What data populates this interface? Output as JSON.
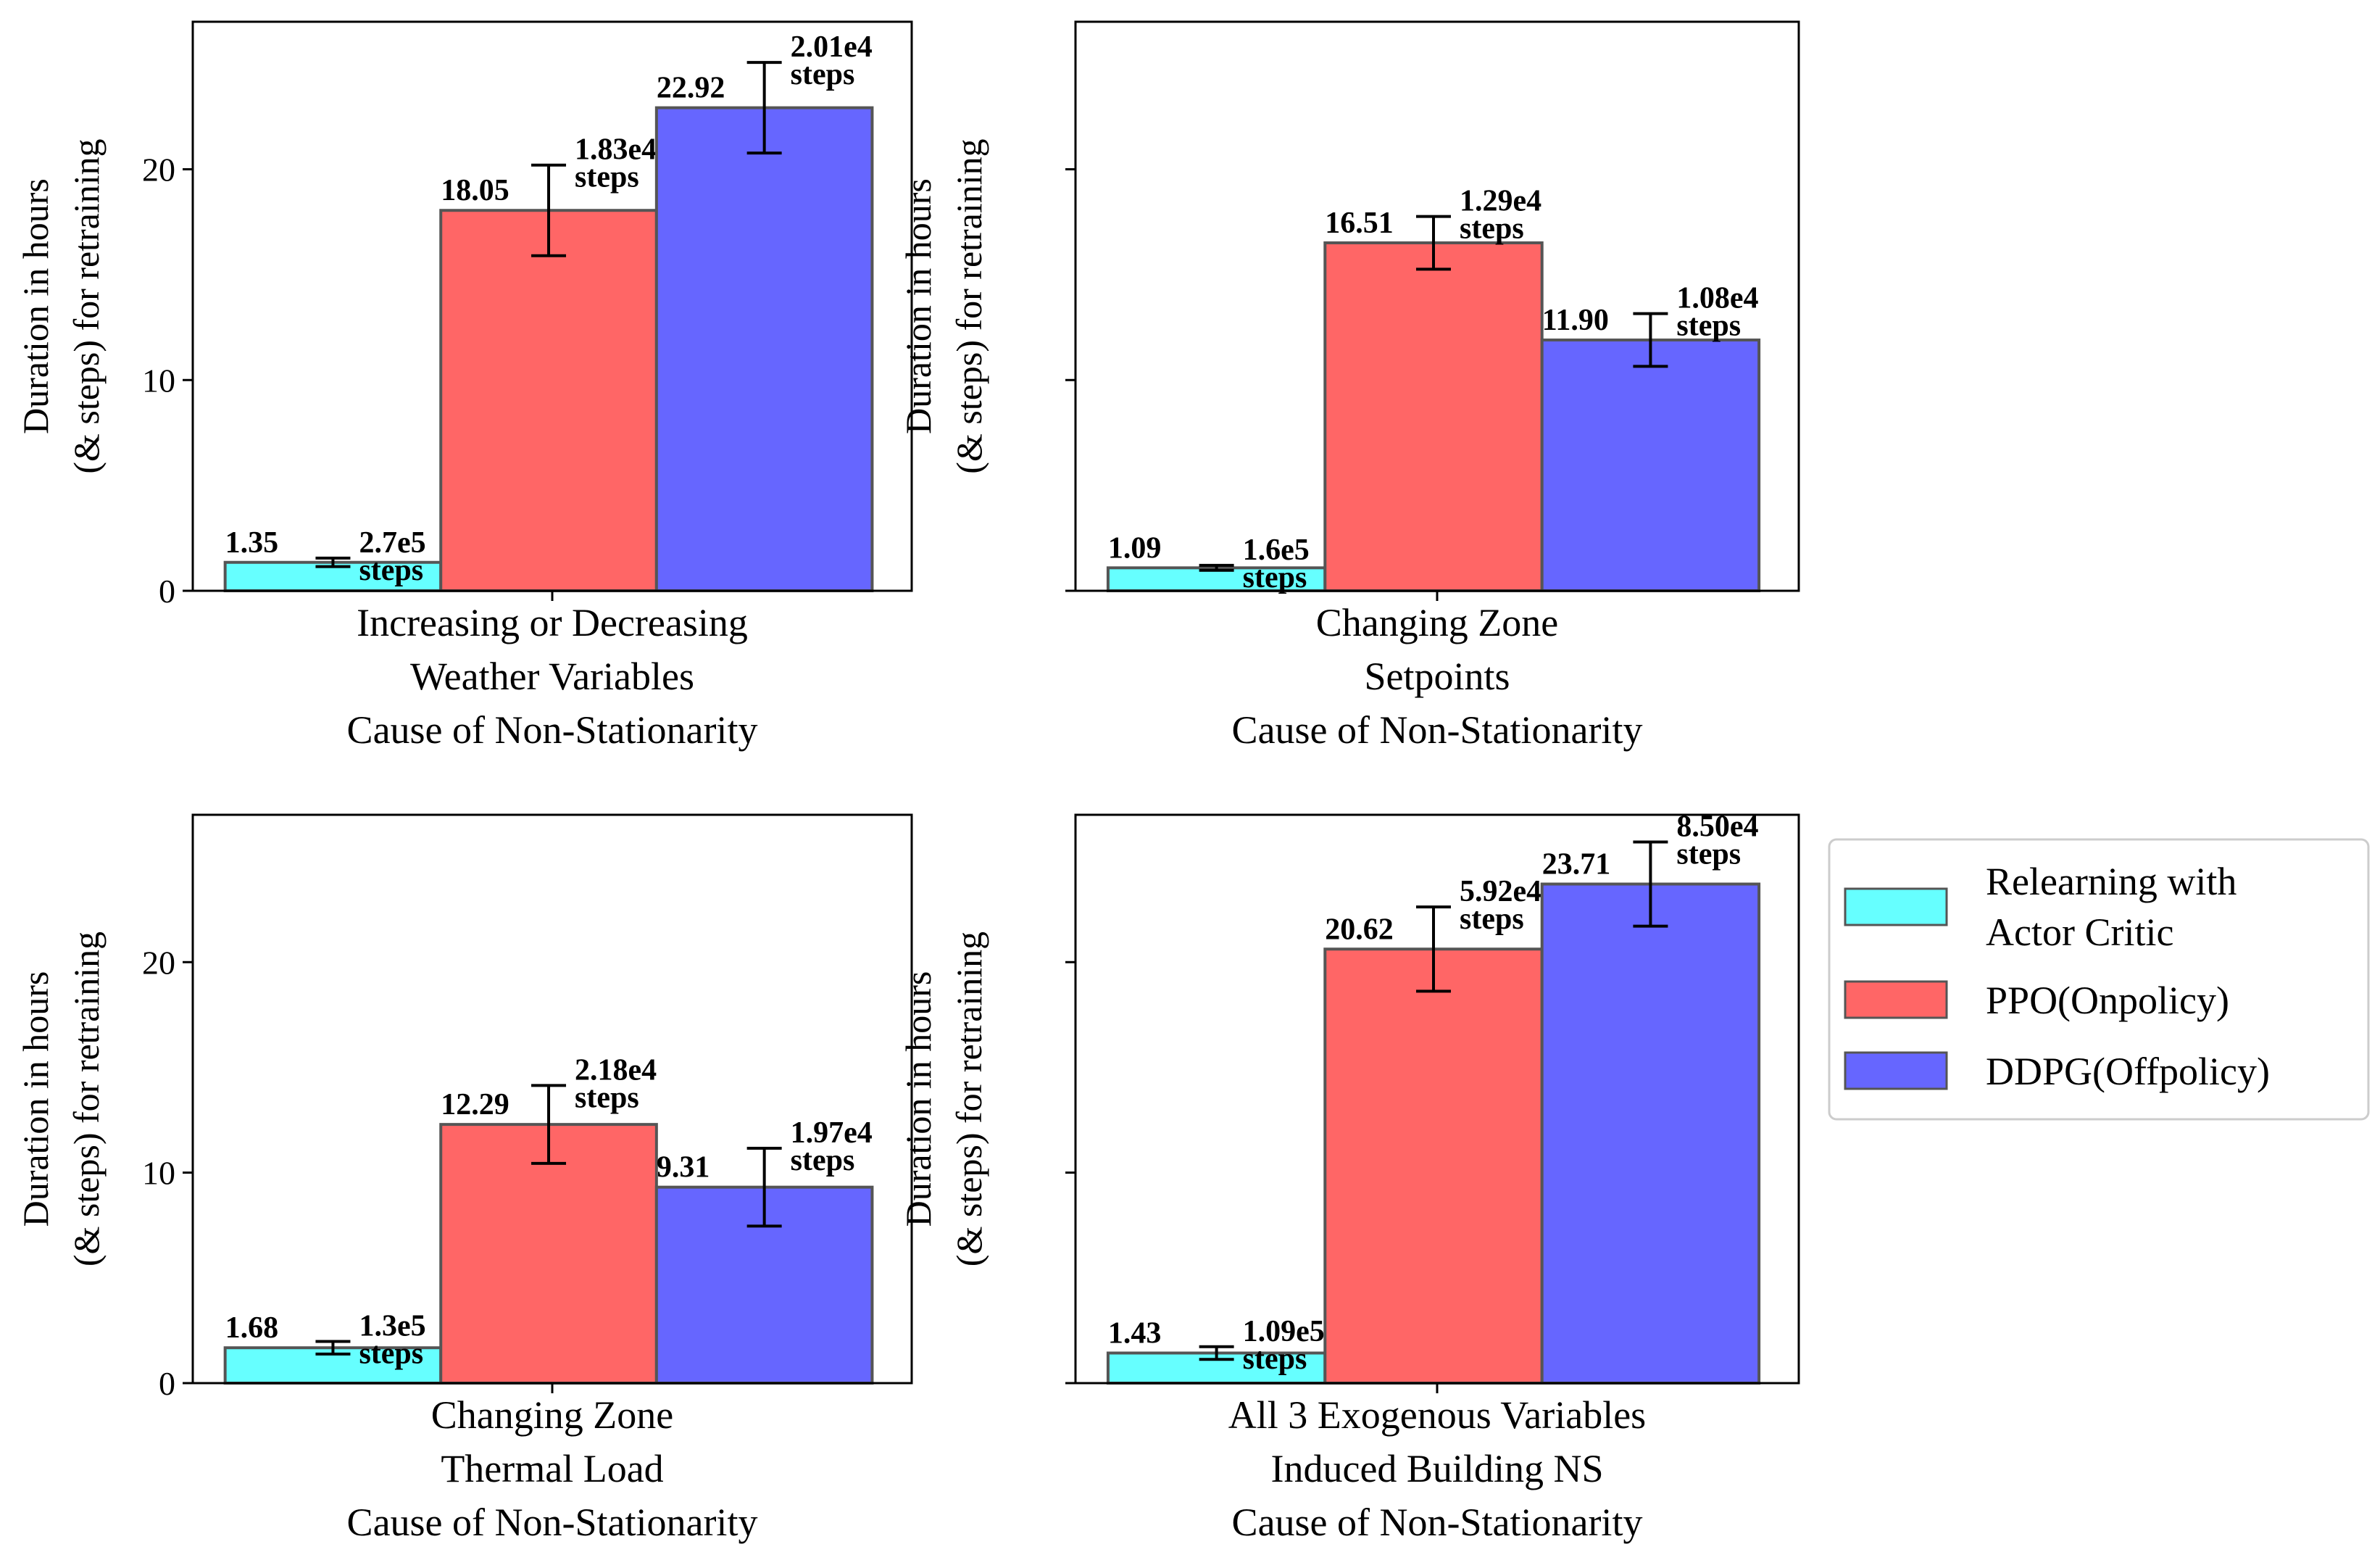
{
  "chart_data": [
    {
      "type": "bar",
      "xlabel_lines": [
        "Increasing or Decreasing",
        "Weather Variables",
        "Cause of Non-Stationarity"
      ],
      "ylabel_lines": [
        "Duration in hours",
        "(& steps) for retraining"
      ],
      "yticks": [
        "0",
        "10",
        "20"
      ],
      "ylim": [
        0,
        27
      ],
      "series": [
        {
          "name": "Relearning with Actor Critic",
          "value": 1.35,
          "value_label": "1.35",
          "err": 0.2,
          "steps_label": "2.7e5",
          "steps_word": "steps"
        },
        {
          "name": "PPO(Onpolicy)",
          "value": 18.05,
          "value_label": "18.05",
          "err": 2.15,
          "steps_label": "1.83e4",
          "steps_word": "steps"
        },
        {
          "name": "DDPG(Offpolicy)",
          "value": 22.92,
          "value_label": "22.92",
          "err": 2.15,
          "steps_label": "2.01e4",
          "steps_word": "steps"
        }
      ]
    },
    {
      "type": "bar",
      "xlabel_lines": [
        "Changing Zone",
        "Setpoints",
        "Cause of Non-Stationarity"
      ],
      "ylabel_lines": [
        "Duration in hours",
        "(& steps) for retraining"
      ],
      "yticks": [
        "",
        "",
        ""
      ],
      "ylim": [
        0,
        27
      ],
      "series": [
        {
          "name": "Relearning with Actor Critic",
          "value": 1.09,
          "value_label": "1.09",
          "err": 0.12,
          "steps_label": "1.6e5",
          "steps_word": "steps"
        },
        {
          "name": "PPO(Onpolicy)",
          "value": 16.51,
          "value_label": "16.51",
          "err": 1.25,
          "steps_label": "1.29e4",
          "steps_word": "steps"
        },
        {
          "name": "DDPG(Offpolicy)",
          "value": 11.9,
          "value_label": "11.90",
          "err": 1.25,
          "steps_label": "1.08e4",
          "steps_word": "steps"
        }
      ]
    },
    {
      "type": "bar",
      "xlabel_lines": [
        "Changing Zone",
        "Thermal Load",
        "Cause of Non-Stationarity"
      ],
      "ylabel_lines": [
        "Duration in hours",
        "(& steps) for retraining"
      ],
      "yticks": [
        "0",
        "10",
        "20"
      ],
      "ylim": [
        0,
        27
      ],
      "series": [
        {
          "name": "Relearning with Actor Critic",
          "value": 1.68,
          "value_label": "1.68",
          "err": 0.3,
          "steps_label": "1.3e5",
          "steps_word": "steps"
        },
        {
          "name": "PPO(Onpolicy)",
          "value": 12.29,
          "value_label": "12.29",
          "err": 1.85,
          "steps_label": "2.18e4",
          "steps_word": "steps"
        },
        {
          "name": "DDPG(Offpolicy)",
          "value": 9.31,
          "value_label": "9.31",
          "err": 1.85,
          "steps_label": "1.97e4",
          "steps_word": "steps"
        }
      ]
    },
    {
      "type": "bar",
      "xlabel_lines": [
        "All 3 Exogenous Variables",
        "Induced Building NS",
        "Cause of Non-Stationarity"
      ],
      "ylabel_lines": [
        "Duration in hours",
        "(& steps) for retraining"
      ],
      "yticks": [
        "",
        "",
        ""
      ],
      "ylim": [
        0,
        27
      ],
      "series": [
        {
          "name": "Relearning with Actor Critic",
          "value": 1.43,
          "value_label": "1.43",
          "err": 0.3,
          "steps_label": "1.09e5",
          "steps_word": "steps"
        },
        {
          "name": "PPO(Onpolicy)",
          "value": 20.62,
          "value_label": "20.62",
          "err": 2.0,
          "steps_label": "5.92e4",
          "steps_word": "steps"
        },
        {
          "name": "DDPG(Offpolicy)",
          "value": 23.71,
          "value_label": "23.71",
          "err": 2.0,
          "steps_label": "8.50e4",
          "steps_word": "steps"
        }
      ]
    }
  ],
  "legend": {
    "position": "right",
    "items": [
      {
        "lines": [
          "Relearning with",
          " Actor Critic"
        ],
        "color": "#66ffff"
      },
      {
        "lines": [
          "PPO(Onpolicy)"
        ],
        "color": "#ff6666"
      },
      {
        "lines": [
          "DDPG(Offpolicy)"
        ],
        "color": "#6666ff"
      }
    ]
  },
  "colors": {
    "series": [
      "#66ffff",
      "#ff6666",
      "#6666ff"
    ],
    "bar_edge": "#555555",
    "axis": "#000000"
  }
}
